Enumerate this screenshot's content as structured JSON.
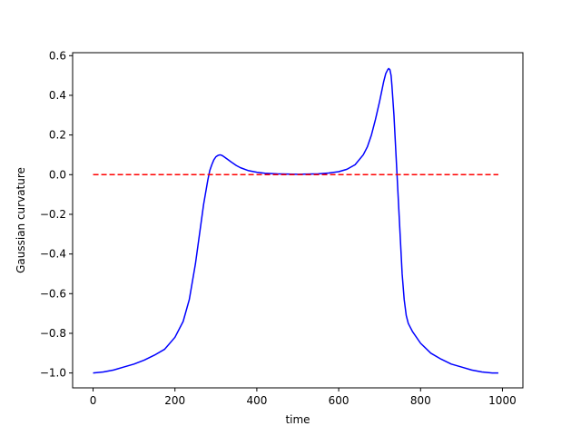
{
  "chart_data": {
    "type": "line",
    "title": "",
    "xlabel": "time",
    "ylabel": "Gaussian curvature",
    "xlim": [
      -50,
      1050
    ],
    "ylim": [
      -1.075,
      0.615
    ],
    "xticks": [
      0,
      200,
      400,
      600,
      800,
      1000
    ],
    "yticks": [
      -1.0,
      -0.8,
      -0.6,
      -0.4,
      -0.2,
      0.0,
      0.2,
      0.4,
      0.6
    ],
    "grid": false,
    "legend": "none",
    "series": [
      {
        "color": "#0000ff",
        "style": "solid",
        "x": [
          0,
          25,
          50,
          75,
          100,
          125,
          150,
          175,
          200,
          220,
          235,
          250,
          260,
          270,
          280,
          285,
          290,
          295,
          300,
          305,
          310,
          315,
          320,
          330,
          340,
          350,
          360,
          380,
          400,
          420,
          450,
          500,
          550,
          575,
          600,
          620,
          640,
          660,
          670,
          680,
          690,
          700,
          705,
          710,
          715,
          720,
          722,
          725,
          728,
          730,
          735,
          740,
          745,
          750,
          755,
          760,
          765,
          770,
          775,
          780,
          800,
          825,
          850,
          875,
          900,
          925,
          950,
          975,
          990
        ],
        "y": [
          -1.0,
          -0.995,
          -0.985,
          -0.97,
          -0.955,
          -0.935,
          -0.91,
          -0.88,
          -0.82,
          -0.74,
          -0.63,
          -0.45,
          -0.3,
          -0.15,
          -0.03,
          0.02,
          0.05,
          0.075,
          0.09,
          0.097,
          0.1,
          0.097,
          0.09,
          0.075,
          0.06,
          0.046,
          0.035,
          0.02,
          0.012,
          0.007,
          0.004,
          0.002,
          0.004,
          0.008,
          0.015,
          0.027,
          0.05,
          0.1,
          0.14,
          0.2,
          0.28,
          0.37,
          0.42,
          0.47,
          0.51,
          0.53,
          0.535,
          0.53,
          0.5,
          0.45,
          0.3,
          0.1,
          -0.1,
          -0.3,
          -0.5,
          -0.63,
          -0.71,
          -0.75,
          -0.77,
          -0.79,
          -0.85,
          -0.9,
          -0.93,
          -0.955,
          -0.97,
          -0.985,
          -0.995,
          -1.0,
          -1.0
        ]
      },
      {
        "color": "#ff0000",
        "style": "dashed",
        "x": [
          0,
          990
        ],
        "y": [
          0.0,
          0.0
        ]
      }
    ]
  }
}
